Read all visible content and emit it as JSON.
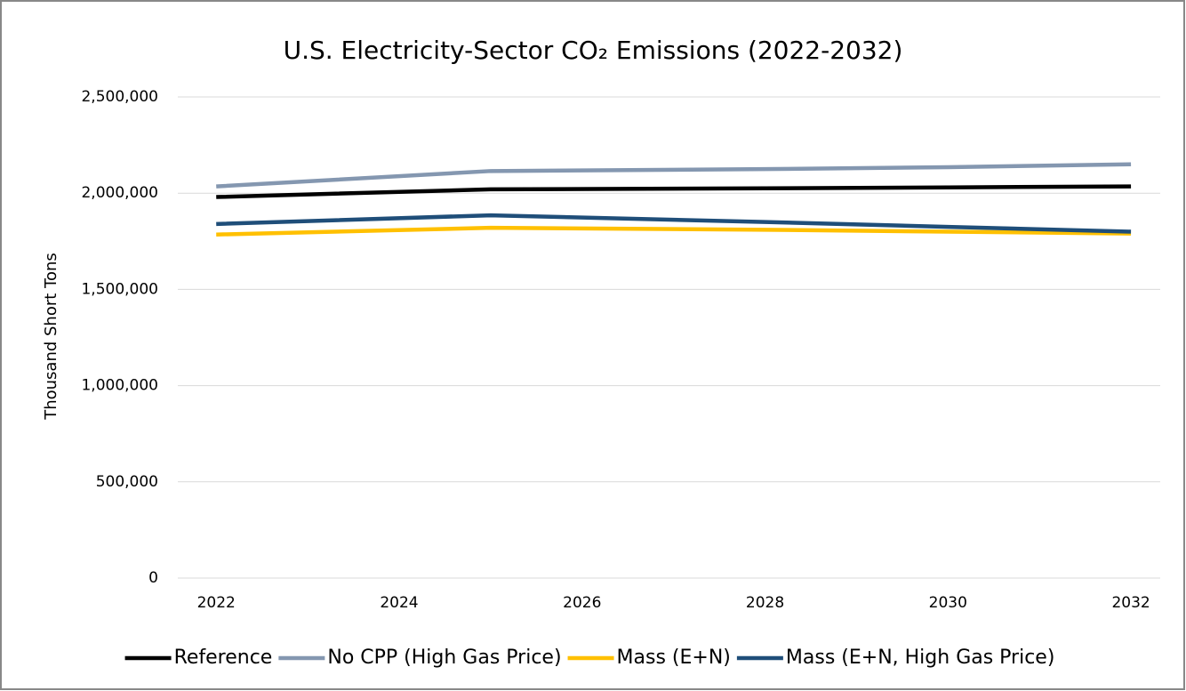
{
  "chart_data": {
    "type": "line",
    "title": "U.S. Electricity-Sector CO₂ Emissions (2022-2032)",
    "y_label": "Thousand Short Tons",
    "x": [
      2022,
      2025,
      2028,
      2030,
      2032
    ],
    "series": [
      {
        "name": "Reference",
        "color": "#000000",
        "values": [
          1980000,
          2020000,
          2025000,
          2030000,
          2035000
        ]
      },
      {
        "name": "No CPP (High Gas Price)",
        "color": "#8497b0",
        "values": [
          2035000,
          2115000,
          2125000,
          2135000,
          2150000
        ]
      },
      {
        "name": "Mass (E+N)",
        "color": "#ffc000",
        "values": [
          1785000,
          1820000,
          1810000,
          1800000,
          1790000
        ]
      },
      {
        "name": "Mass (E+N, High Gas Price)",
        "color": "#1f4e79",
        "values": [
          1840000,
          1885000,
          1850000,
          1825000,
          1800000
        ]
      }
    ],
    "xlim": [
      2021.58,
      2032.32
    ],
    "xticks": [
      2022,
      2024,
      2026,
      2028,
      2030,
      2032
    ],
    "ylim": [
      0,
      2500000
    ],
    "yticks": [
      0,
      {
        "value": 500000,
        "label": "500,000"
      },
      {
        "value": 1000000,
        "label": "1,000,000"
      },
      {
        "value": 1500000,
        "label": "1,500,000"
      },
      {
        "value": 2000000,
        "label": "2,000,000"
      },
      {
        "value": 2500000,
        "label": "2,500,000"
      }
    ],
    "grid": true,
    "legend": "bottom"
  }
}
